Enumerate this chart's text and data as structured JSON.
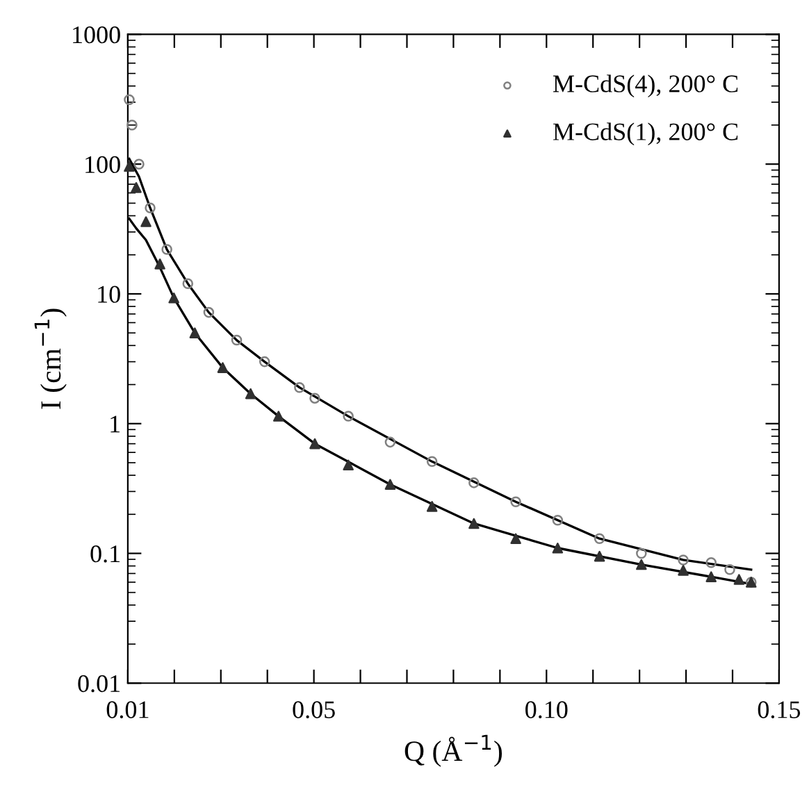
{
  "chart_data": {
    "type": "scatter",
    "xlabel": "Q (Å$^{−1}$)",
    "ylabel": "I (cm$^{−1}$)",
    "log": "y",
    "xlim": [
      0.01,
      0.15
    ],
    "ylim": [
      0.01,
      1000
    ],
    "xticks": [
      0.01,
      {
        "value": 0.02,
        "label": null
      },
      {
        "value": 0.03,
        "label": null
      },
      {
        "value": 0.04,
        "label": null
      },
      0.05,
      {
        "value": 0.06,
        "label": null
      },
      {
        "value": 0.07,
        "label": null
      },
      {
        "value": 0.08,
        "label": null
      },
      {
        "value": 0.09,
        "label": null
      },
      {
        "value": 0.1,
        "label": "0.10"
      },
      {
        "value": 0.11,
        "label": null
      },
      {
        "value": 0.12,
        "label": null
      },
      {
        "value": 0.13,
        "label": null
      },
      {
        "value": 0.14,
        "label": null
      },
      0.15
    ],
    "yticks": [
      0.01,
      0.1,
      1,
      10,
      100,
      1000
    ],
    "grid": false,
    "legend": "top right",
    "series": [
      {
        "name": "M-CdS(4), 200° C",
        "marker": "circle",
        "color": "#808080",
        "x": [
          0.0103,
          0.0109,
          0.0124,
          0.0148,
          0.0184,
          0.0229,
          0.0274,
          0.0334,
          0.0394,
          0.0469,
          0.0502,
          0.0574,
          0.0664,
          0.0754,
          0.0844,
          0.0934,
          0.1024,
          0.1114,
          0.1204,
          0.1294,
          0.1354,
          0.1394,
          0.144
        ],
        "values": [
          314,
          200,
          100,
          46,
          22,
          12,
          7.2,
          4.4,
          3.0,
          1.9,
          1.57,
          1.14,
          0.72,
          0.51,
          0.35,
          0.25,
          0.18,
          0.13,
          0.1,
          0.089,
          0.085,
          0.075,
          0.06
        ]
      },
      {
        "name": "M-CdS(1), 200° C",
        "marker": "triangle",
        "color": "#303030",
        "x": [
          0.0103,
          0.0118,
          0.0139,
          0.0169,
          0.0199,
          0.0244,
          0.0304,
          0.0364,
          0.0424,
          0.0502,
          0.0574,
          0.0664,
          0.0754,
          0.0844,
          0.0934,
          0.1024,
          0.1114,
          0.1204,
          0.1294,
          0.1354,
          0.1414,
          0.144
        ],
        "values": [
          96,
          66,
          36,
          17,
          9.3,
          5.0,
          2.7,
          1.7,
          1.14,
          0.7,
          0.48,
          0.34,
          0.23,
          0.17,
          0.13,
          0.11,
          0.095,
          0.082,
          0.074,
          0.066,
          0.063,
          0.06
        ]
      },
      {
        "type": "line",
        "color": "#000000",
        "x": [
          0.0103,
          0.0124,
          0.0148,
          0.0184,
          0.0229,
          0.0274,
          0.0334,
          0.0394,
          0.0469,
          0.0574,
          0.0754,
          0.0934,
          0.1114,
          0.1294,
          0.144
        ],
        "values": [
          110,
          80,
          46,
          22,
          12,
          7.2,
          4.4,
          3.0,
          1.9,
          1.14,
          0.51,
          0.25,
          0.13,
          0.089,
          0.075
        ]
      },
      {
        "type": "line",
        "color": "#000000",
        "x": [
          0.0103,
          0.0118,
          0.0139,
          0.0169,
          0.0199,
          0.0244,
          0.0304,
          0.0364,
          0.0424,
          0.0502,
          0.0664,
          0.0844,
          0.1024,
          0.1204,
          0.1354,
          0.144
        ],
        "values": [
          38,
          32,
          26,
          16,
          9.3,
          5.0,
          2.7,
          1.7,
          1.14,
          0.7,
          0.34,
          0.17,
          0.11,
          0.082,
          0.066,
          0.058
        ]
      }
    ]
  }
}
